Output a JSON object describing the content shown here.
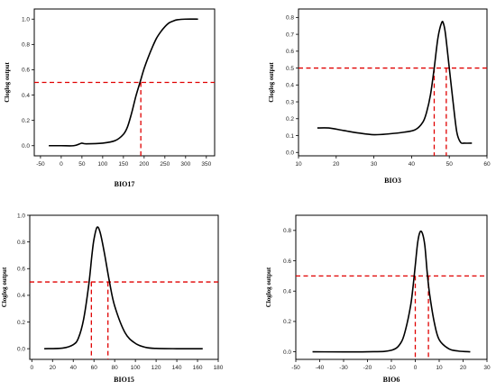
{
  "chart_data": [
    {
      "type": "line",
      "xlabel": "BIO17",
      "ylabel": "Cloglog output",
      "xlim": [
        -65,
        370
      ],
      "ylim": [
        -0.08,
        1.08
      ],
      "xticks": [
        -50,
        0,
        50,
        100,
        150,
        200,
        250,
        300,
        350
      ],
      "yticks": [
        0.0,
        0.2,
        0.4,
        0.6,
        0.8,
        1.0
      ],
      "tick_labels_x": [
        "-50",
        "0",
        "50",
        "100",
        "150",
        "200",
        "250",
        "300",
        "350"
      ],
      "tick_labels_y": [
        "0.0",
        "0.2",
        "0.4",
        "0.6",
        "0.8",
        "1.0"
      ],
      "series": [
        {
          "x": [
            -30,
            0,
            30,
            45,
            50,
            60,
            100,
            130,
            150,
            160,
            170,
            180,
            190,
            200,
            210,
            220,
            230,
            240,
            250,
            260,
            270,
            280,
            300,
            330
          ],
          "y": [
            0.0,
            0.0,
            0.0,
            0.015,
            0.02,
            0.015,
            0.02,
            0.04,
            0.09,
            0.15,
            0.26,
            0.39,
            0.5,
            0.61,
            0.7,
            0.78,
            0.85,
            0.9,
            0.94,
            0.97,
            0.985,
            0.995,
            1.0,
            1.0
          ]
        }
      ],
      "threshold": {
        "y": 0.5,
        "x": [
          192
        ]
      },
      "colors": {
        "curve": "#000000",
        "threshold": "#e00000"
      }
    },
    {
      "type": "line",
      "xlabel": "BIO3",
      "ylabel": "Cloglog output",
      "xlim": [
        10,
        60
      ],
      "ylim": [
        -0.02,
        0.85
      ],
      "xticks": [
        10,
        20,
        30,
        40,
        50,
        60
      ],
      "yticks": [
        0.0,
        0.1,
        0.2,
        0.3,
        0.4,
        0.5,
        0.6,
        0.7,
        0.8
      ],
      "tick_labels_x": [
        "10",
        "20",
        "30",
        "40",
        "50",
        "60"
      ],
      "tick_labels_y": [
        "0.0",
        "0.1",
        "0.2",
        "0.3",
        "0.4",
        "0.5",
        "0.6",
        "0.7",
        "0.8"
      ],
      "series": [
        {
          "x": [
            15,
            18,
            22,
            26,
            30,
            34,
            38,
            41,
            43,
            44,
            45,
            46,
            47,
            48,
            48.5,
            49,
            50,
            51,
            52,
            53,
            54,
            56
          ],
          "y": [
            0.145,
            0.145,
            0.13,
            0.115,
            0.105,
            0.11,
            0.12,
            0.135,
            0.18,
            0.24,
            0.34,
            0.5,
            0.68,
            0.77,
            0.76,
            0.7,
            0.5,
            0.3,
            0.12,
            0.06,
            0.055,
            0.055
          ]
        }
      ],
      "threshold": {
        "y": 0.5,
        "x": [
          46,
          49.2
        ]
      },
      "colors": {
        "curve": "#000000",
        "threshold": "#e00000"
      }
    },
    {
      "type": "line",
      "xlabel": "BIO15",
      "ylabel": "Cloglog output",
      "xlim": [
        -2,
        180
      ],
      "ylim": [
        -0.08,
        1.0
      ],
      "xticks": [
        0,
        20,
        40,
        60,
        80,
        100,
        120,
        140,
        160,
        180
      ],
      "yticks": [
        0.0,
        0.2,
        0.4,
        0.6,
        0.8,
        1.0
      ],
      "tick_labels_x": [
        "0",
        "20",
        "40",
        "60",
        "80",
        "100",
        "120",
        "140",
        "160",
        "180"
      ],
      "tick_labels_y": [
        "0.0",
        "0.2",
        "0.4",
        "0.6",
        "0.8",
        "1.0"
      ],
      "series": [
        {
          "x": [
            12,
            30,
            40,
            45,
            50,
            55,
            58,
            60,
            63,
            66,
            70,
            75,
            80,
            90,
            100,
            110,
            120,
            140,
            165
          ],
          "y": [
            0.0,
            0.005,
            0.03,
            0.08,
            0.22,
            0.48,
            0.7,
            0.82,
            0.91,
            0.87,
            0.72,
            0.5,
            0.32,
            0.12,
            0.04,
            0.01,
            0.002,
            0.0,
            0.0
          ]
        }
      ],
      "threshold": {
        "y": 0.5,
        "x": [
          57.5,
          73.5
        ]
      },
      "colors": {
        "curve": "#000000",
        "threshold": "#e00000"
      }
    },
    {
      "type": "line",
      "xlabel": "BIO6",
      "ylabel": "Cloglog output",
      "xlim": [
        -50,
        30
      ],
      "ylim": [
        -0.05,
        0.9
      ],
      "xticks": [
        -50,
        -40,
        -30,
        -20,
        -10,
        0,
        10,
        20,
        30
      ],
      "yticks": [
        0.0,
        0.2,
        0.4,
        0.6,
        0.8
      ],
      "tick_labels_x": [
        "-50",
        "-40",
        "-30",
        "-20",
        "-10",
        "0",
        "10",
        "20",
        "30"
      ],
      "tick_labels_y": [
        "0.0",
        "0.2",
        "0.4",
        "0.6",
        "0.8"
      ],
      "series": [
        {
          "x": [
            -43,
            -20,
            -10,
            -6,
            -4,
            -2,
            -1,
            0,
            1,
            2,
            3,
            4,
            5,
            6,
            8,
            10,
            14,
            18,
            23
          ],
          "y": [
            0.0,
            0.0,
            0.01,
            0.06,
            0.15,
            0.3,
            0.42,
            0.57,
            0.72,
            0.79,
            0.78,
            0.7,
            0.52,
            0.38,
            0.19,
            0.08,
            0.02,
            0.005,
            0.0
          ]
        }
      ],
      "threshold": {
        "y": 0.5,
        "x": [
          0,
          5.5
        ]
      },
      "colors": {
        "curve": "#000000",
        "threshold": "#e00000"
      }
    }
  ]
}
